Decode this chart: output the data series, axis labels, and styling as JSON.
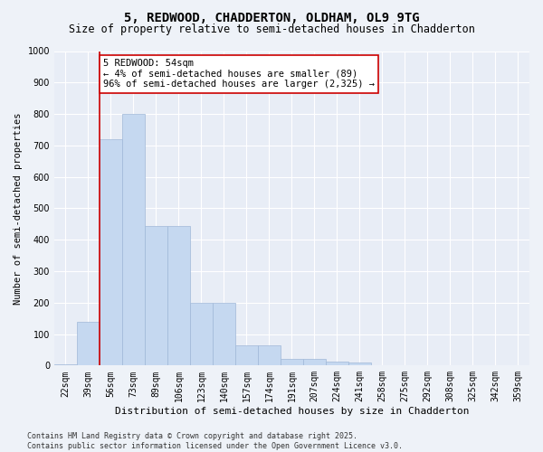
{
  "title": "5, REDWOOD, CHADDERTON, OLDHAM, OL9 9TG",
  "subtitle": "Size of property relative to semi-detached houses in Chadderton",
  "xlabel": "Distribution of semi-detached houses by size in Chadderton",
  "ylabel": "Number of semi-detached properties",
  "bar_labels": [
    "22sqm",
    "39sqm",
    "56sqm",
    "73sqm",
    "89sqm",
    "106sqm",
    "123sqm",
    "140sqm",
    "157sqm",
    "174sqm",
    "191sqm",
    "207sqm",
    "224sqm",
    "241sqm",
    "258sqm",
    "275sqm",
    "292sqm",
    "308sqm",
    "325sqm",
    "342sqm",
    "359sqm"
  ],
  "bar_values": [
    5,
    140,
    720,
    800,
    445,
    445,
    200,
    200,
    65,
    65,
    20,
    20,
    12,
    10,
    0,
    0,
    0,
    0,
    0,
    0,
    0
  ],
  "bar_color": "#c5d8f0",
  "bar_edge_color": "#a0b8d8",
  "vline_x_idx": 2,
  "vline_color": "#cc0000",
  "annotation_text": "5 REDWOOD: 54sqm\n← 4% of semi-detached houses are smaller (89)\n96% of semi-detached houses are larger (2,325) →",
  "annotation_box_color": "#ffffff",
  "annotation_box_edge": "#cc0000",
  "ylim": [
    0,
    1000
  ],
  "yticks": [
    0,
    100,
    200,
    300,
    400,
    500,
    600,
    700,
    800,
    900,
    1000
  ],
  "bg_color": "#eef2f8",
  "plot_bg_color": "#e8edf6",
  "grid_color": "#ffffff",
  "footer": "Contains HM Land Registry data © Crown copyright and database right 2025.\nContains public sector information licensed under the Open Government Licence v3.0.",
  "title_fontsize": 10,
  "subtitle_fontsize": 8.5,
  "xlabel_fontsize": 8,
  "ylabel_fontsize": 7.5,
  "tick_fontsize": 7,
  "footer_fontsize": 6,
  "annot_fontsize": 7.5
}
